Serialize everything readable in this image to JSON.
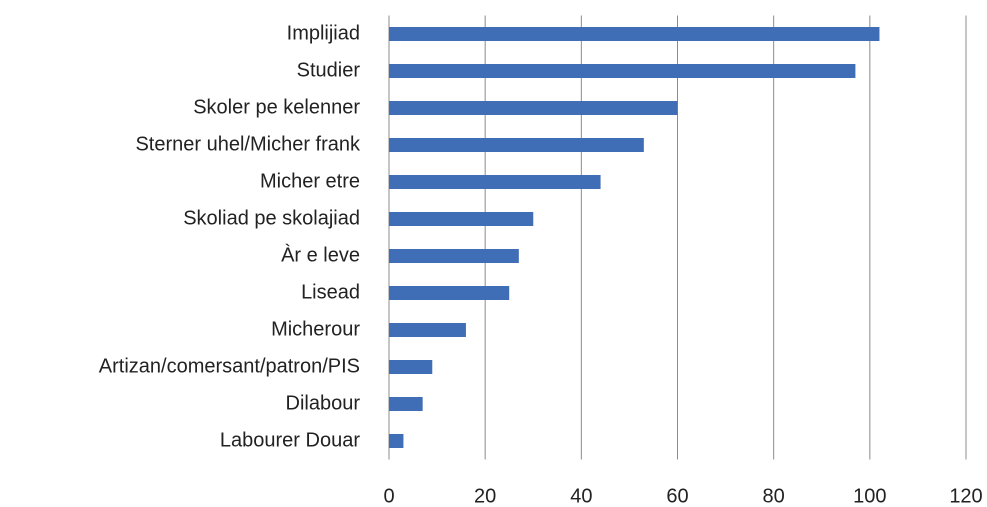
{
  "chart_data": {
    "type": "bar",
    "orientation": "horizontal",
    "categories": [
      "Implijiad",
      "Studier",
      "Skoler pe kelenner",
      "Sterner uhel/Micher frank",
      "Micher etre",
      "Skoliad pe skolajiad",
      "Àr e leve",
      "Lisead",
      "Micherour",
      "Artizan/comersant/patron/PIS",
      "Dilabour",
      "Labourer Douar"
    ],
    "values": [
      102,
      97,
      60,
      53,
      44,
      30,
      27,
      25,
      16,
      9,
      7,
      3
    ],
    "color": "#3f6db6",
    "xlim": [
      0,
      120
    ],
    "xticks": [
      0,
      20,
      40,
      60,
      80,
      100,
      120
    ],
    "grid": true
  }
}
